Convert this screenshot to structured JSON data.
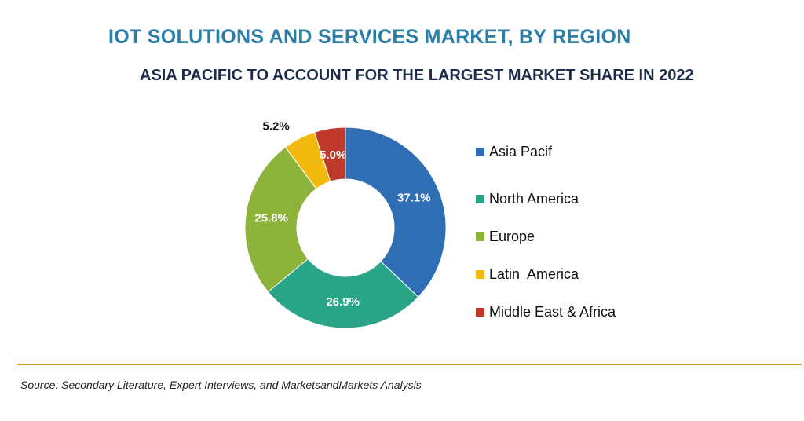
{
  "title": "IOT SOLUTIONS AND SERVICES MARKET, BY REGION",
  "subtitle": "ASIA PACIFIC TO ACCOUNT FOR THE LARGEST MARKET SHARE IN 2022",
  "source": "Source: Secondary Literature, Expert Interviews, and MarketsandMarkets Analysis",
  "chart_data": {
    "type": "pie",
    "categories": [
      "Asia Pacif",
      "North America",
      "Europe",
      "Latin  America",
      "Middle East & Africa"
    ],
    "values": [
      37.1,
      26.9,
      25.8,
      5.2,
      5.0
    ],
    "labels": [
      "37.1%",
      "26.9%",
      "25.8%",
      "5.2%",
      "5.0%"
    ],
    "colors": [
      "#2f6eb5",
      "#2aa588",
      "#8db33a",
      "#f2b90f",
      "#c0392b"
    ],
    "legend": "right"
  }
}
